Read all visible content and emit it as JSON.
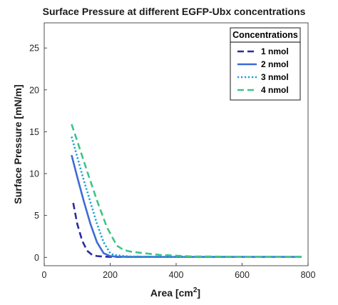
{
  "chart_data": {
    "type": "line",
    "title": "Surface Pressure at different EGFP-Ubx concentrations",
    "xlabel": "Area [cm",
    "xlabel_sup": "2",
    "xlabel_end": "]",
    "ylabel": "Surface Pressure [mN/m]",
    "xlim": [
      0,
      800
    ],
    "ylim": [
      -1,
      28
    ],
    "xticks": [
      0,
      200,
      400,
      600,
      800
    ],
    "yticks": [
      0,
      5,
      10,
      15,
      20,
      25
    ],
    "grid": false,
    "legend": {
      "title": "Concentrations",
      "placement": "top-right"
    },
    "series": [
      {
        "name": "1 nmol",
        "color": "#2b2ba0",
        "style": "dashed",
        "x": [
          88,
          100,
          115,
          130,
          145,
          160,
          175,
          200,
          250,
          300,
          400,
          500,
          600,
          700,
          780
        ],
        "y": [
          6.5,
          4.0,
          2.0,
          0.8,
          0.3,
          0.15,
          0.1,
          0.05,
          0.05,
          0.05,
          0.05,
          0.05,
          0.05,
          0.05,
          0.05
        ]
      },
      {
        "name": "2 nmol",
        "color": "#3f6ad8",
        "style": "solid",
        "x": [
          83,
          100,
          120,
          140,
          160,
          180,
          200,
          220,
          260,
          300,
          400,
          500,
          600,
          700,
          780
        ],
        "y": [
          12.2,
          9.6,
          6.7,
          4.0,
          1.8,
          0.5,
          0.15,
          0.08,
          0.05,
          0.05,
          0.05,
          0.05,
          0.05,
          0.05,
          0.05
        ]
      },
      {
        "name": "3 nmol",
        "color": "#1aa0d0",
        "style": "dotted",
        "x": [
          83,
          100,
          120,
          140,
          160,
          180,
          200,
          210,
          230,
          260,
          300,
          400,
          500,
          600,
          700,
          780
        ],
        "y": [
          14.4,
          12.0,
          9.2,
          6.6,
          4.0,
          1.8,
          0.5,
          0.3,
          0.2,
          0.1,
          0.08,
          0.05,
          0.05,
          0.05,
          0.05,
          0.05
        ]
      },
      {
        "name": "4 nmol",
        "color": "#3ec48a",
        "style": "dashed",
        "x": [
          83,
          100,
          130,
          160,
          190,
          220,
          240,
          260,
          300,
          350,
          400,
          450,
          500,
          600,
          700,
          780
        ],
        "y": [
          15.9,
          13.9,
          10.3,
          6.8,
          3.6,
          1.4,
          0.9,
          0.7,
          0.5,
          0.3,
          0.2,
          0.1,
          0.1,
          0.05,
          0.05,
          0.05
        ]
      }
    ]
  }
}
